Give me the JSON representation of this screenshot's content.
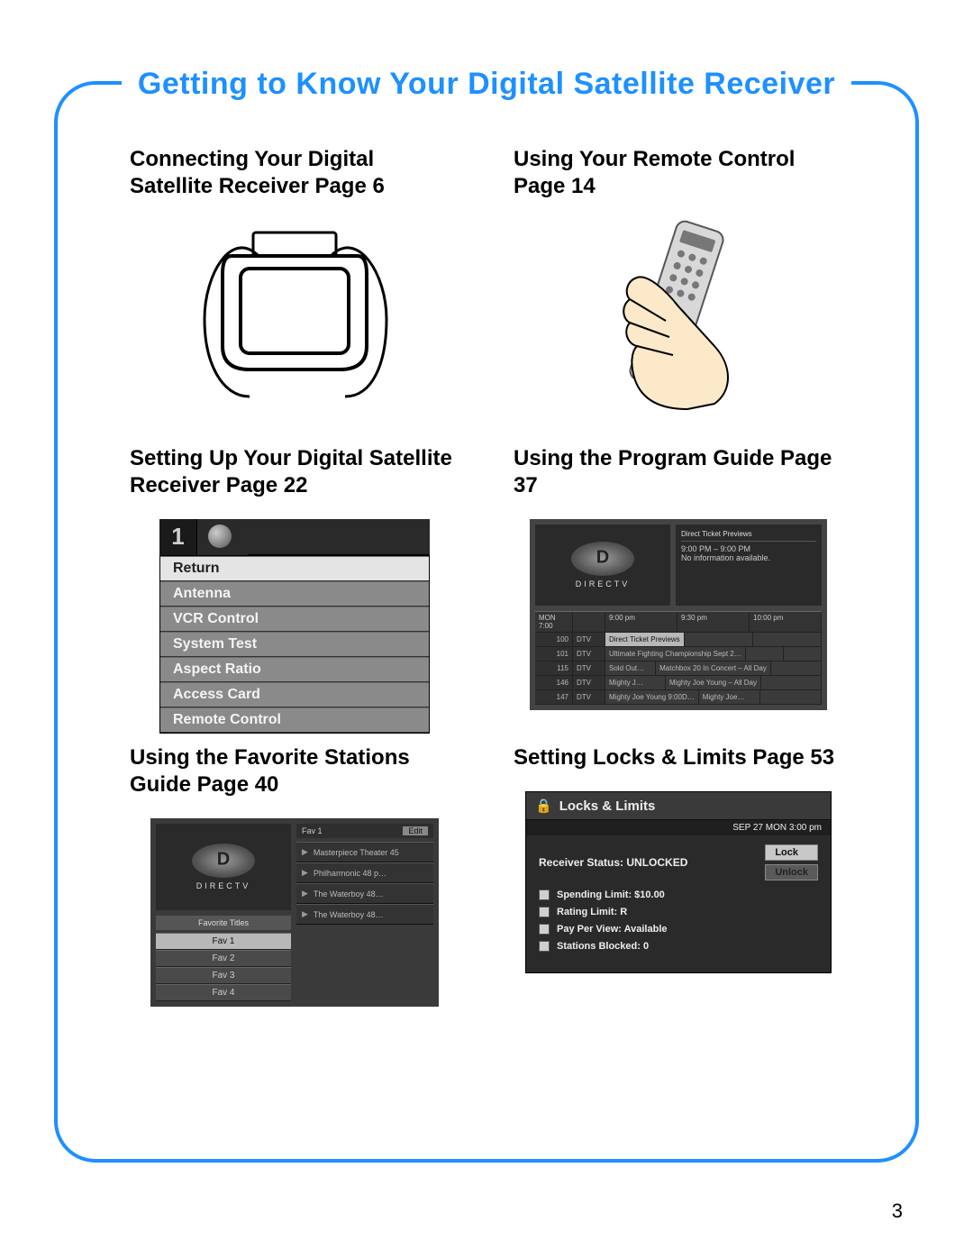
{
  "page": {
    "title": "Getting to Know Your Digital Satellite Receiver",
    "number": "3",
    "border_color": "#1e90ff",
    "title_fontsize": 34,
    "heading_fontsize": 24,
    "heading_color": "#000000",
    "background_color": "#ffffff"
  },
  "sections": {
    "connecting": {
      "heading": "Connecting Your Digital Satellite Receiver Page 6"
    },
    "remote": {
      "heading": "Using Your Remote Control Page 14"
    },
    "setup": {
      "heading": "Setting Up Your Digital Satellite Receiver Page 22"
    },
    "guide": {
      "heading": "Using the Program Guide Page 37"
    },
    "favorites": {
      "heading": "Using the Favorite Stations Guide Page 40"
    },
    "locks": {
      "heading": "Setting Locks & Limits Page 53"
    }
  },
  "setup_menu": {
    "channel_number": "1",
    "items": [
      "Return",
      "Antenna",
      "VCR Control",
      "System Test",
      "Aspect Ratio",
      "Access Card",
      "Remote Control"
    ],
    "selected_index": 0,
    "colors": {
      "item_bg": "#8a8a8a",
      "item_fg": "#f4f4f4",
      "sel_bg": "#e4e4e4",
      "sel_fg": "#222222"
    }
  },
  "program_guide": {
    "logo_text": "DIRECTV",
    "info_title": "Direct Ticket Previews",
    "info_time": "9:00 PM – 9:00 PM",
    "info_desc": "No information available.",
    "time_header": [
      "MON 7:00",
      "9:00 pm",
      "9:30 pm",
      "10:00 pm"
    ],
    "rows": [
      {
        "num": "100",
        "call": "DTV",
        "cells": [
          "Direct Ticket Previews",
          "",
          ""
        ],
        "selected": true
      },
      {
        "num": "101",
        "call": "DTV",
        "cells": [
          "Ultimate Fighting Championship Sept 2…",
          "",
          ""
        ]
      },
      {
        "num": "115",
        "call": "DTV",
        "cells": [
          "Sold Out…",
          "Matchbox 20 In Concert – All Day",
          ""
        ]
      },
      {
        "num": "146",
        "call": "DTV",
        "cells": [
          "Mighty J…",
          "Mighty Joe Young – All Day",
          ""
        ]
      },
      {
        "num": "147",
        "call": "DTV",
        "cells": [
          "Mighty Joe Young 9:00D…",
          "Mighty Joe…",
          ""
        ]
      }
    ],
    "colors": {
      "bg": "#444444",
      "panel": "#2a2a2a",
      "row_bg": "#3b3b3b",
      "sel_bg": "#b8b8b8",
      "text": "#bbbbbb"
    }
  },
  "favorites": {
    "logo_text": "DIRECTV",
    "caption": "Favorite Titles",
    "tabs": [
      "Fav 1",
      "Fav 2",
      "Fav 3",
      "Fav 4"
    ],
    "selected_tab": 0,
    "list_header": "Fav 1",
    "edit_label": "Edit",
    "items": [
      "Masterpiece Theater 45",
      "Philharmonic 48 p…",
      "The Waterboy 48…",
      "The Waterboy 48…"
    ],
    "colors": {
      "bg": "#3a3a3a",
      "panel": "#2a2a2a",
      "tab_bg": "#4a4a4a",
      "sel_bg": "#b8b8b8"
    }
  },
  "locks": {
    "title": "Locks & Limits",
    "lock_icon": "🔒",
    "timestamp": "SEP 27 MON  3:00 pm",
    "status_label": "Receiver Status:",
    "status_value": "UNLOCKED",
    "buttons": {
      "lock": "Lock",
      "unlock": "Unlock"
    },
    "lines": [
      {
        "label": "Spending Limit:",
        "value": "$10.00"
      },
      {
        "label": "Rating Limit:",
        "value": "R"
      },
      {
        "label": "Pay Per View:",
        "value": "Available"
      },
      {
        "label": "Stations Blocked:",
        "value": "0"
      }
    ],
    "colors": {
      "bg": "#2a2a2a",
      "title_bg": "#3a3a3a",
      "btn_bg": "#c8c8c8",
      "btn_dim": "#5a5a5a",
      "text": "#eeeeee"
    }
  }
}
